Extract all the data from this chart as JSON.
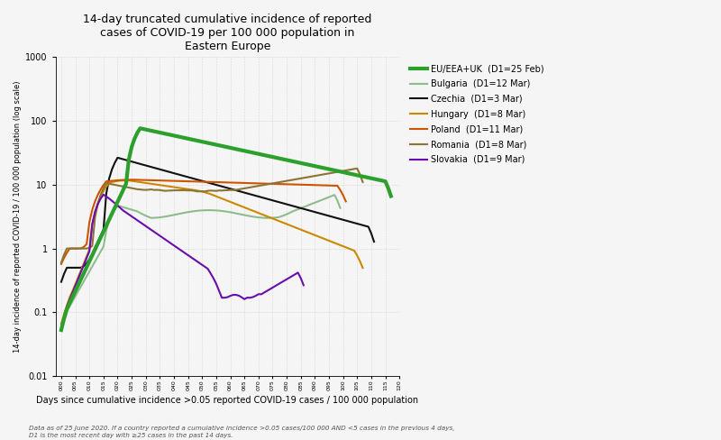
{
  "title": "14-day truncated cumulative incidence of reported\ncases of COVID-19 per 100 000 population in\nEastern Europe",
  "xlabel": "Days since cumulative incidence >0.05 reported COVID-19 cases / 100 000 population",
  "ylabel": "14-day incidence of reported COVID-19 / 100 000 population (log scale)",
  "footnote": "Data as of 25 June 2020. If a country reported a cumulative incidence >0.05 cases/100 000 AND <5 cases in the previous 4 days,\nD1 is the most recent day with ≥25 cases in the past 14 days.",
  "ylim_log": [
    0.01,
    1000
  ],
  "background_color": "#f5f5f5",
  "series": [
    {
      "name": "EU/EEA+UK  (D1=25 Feb)",
      "color": "#2ca02c",
      "linewidth": 3.0
    },
    {
      "name": "Bulgaria  (D1=12 Mar)",
      "color": "#8fbc8f",
      "linewidth": 1.5
    },
    {
      "name": "Czechia  (D1=3 Mar)",
      "color": "#111111",
      "linewidth": 1.5
    },
    {
      "name": "Hungary  (D1=8 Mar)",
      "color": "#cc8800",
      "linewidth": 1.5
    },
    {
      "name": "Poland  (D1=11 Mar)",
      "color": "#cc5500",
      "linewidth": 1.5
    },
    {
      "name": "Romania  (D1=8 Mar)",
      "color": "#8b7536",
      "linewidth": 1.5
    },
    {
      "name": "Slovakia  (D1=9 Mar)",
      "color": "#6a0dad",
      "linewidth": 1.5
    }
  ]
}
